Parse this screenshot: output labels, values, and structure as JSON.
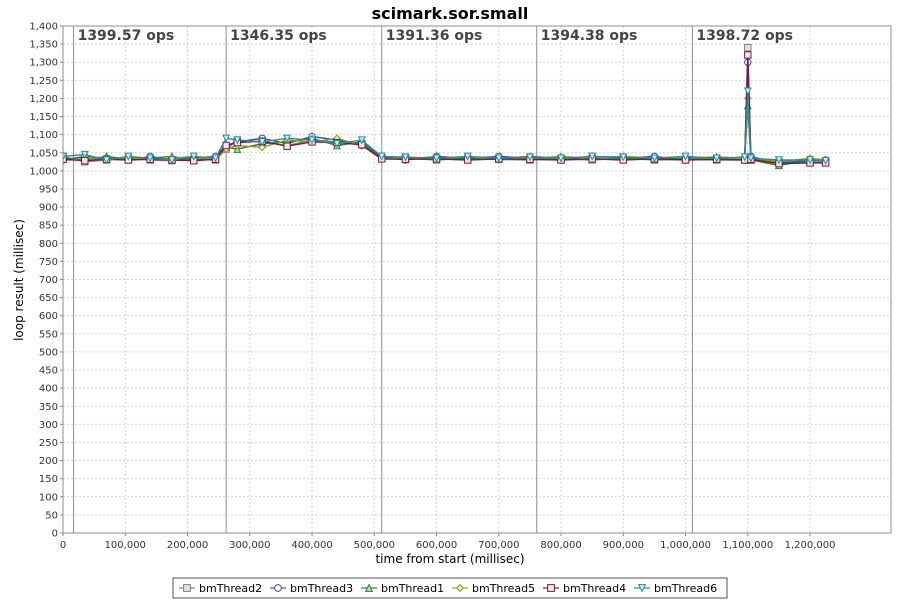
{
  "chart_data": {
    "type": "line",
    "title": "scimark.sor.small",
    "xlabel": "time from start (millisec)",
    "ylabel": "loop result (millisec)",
    "xlim": [
      0,
      1330000
    ],
    "ylim": [
      0,
      1400
    ],
    "x_ticks": [
      {
        "value": 0,
        "label": "0"
      },
      {
        "value": 100000,
        "label": "100,000"
      },
      {
        "value": 200000,
        "label": "200,000"
      },
      {
        "value": 300000,
        "label": "300,000"
      },
      {
        "value": 400000,
        "label": "400,000"
      },
      {
        "value": 500000,
        "label": "500,000"
      },
      {
        "value": 600000,
        "label": "600,000"
      },
      {
        "value": 700000,
        "label": "700,000"
      },
      {
        "value": 800000,
        "label": "800,000"
      },
      {
        "value": 900000,
        "label": "900,000"
      },
      {
        "value": 1000000,
        "label": "1,000,000"
      },
      {
        "value": 1100000,
        "label": "1,100,000"
      },
      {
        "value": 1200000,
        "label": "1,200,000"
      }
    ],
    "y_ticks": [
      {
        "value": 0,
        "label": "0"
      },
      {
        "value": 50,
        "label": "50"
      },
      {
        "value": 100,
        "label": "100"
      },
      {
        "value": 150,
        "label": "150"
      },
      {
        "value": 200,
        "label": "200"
      },
      {
        "value": 250,
        "label": "250"
      },
      {
        "value": 300,
        "label": "300"
      },
      {
        "value": 350,
        "label": "350"
      },
      {
        "value": 400,
        "label": "400"
      },
      {
        "value": 450,
        "label": "450"
      },
      {
        "value": 500,
        "label": "500"
      },
      {
        "value": 550,
        "label": "550"
      },
      {
        "value": 600,
        "label": "600"
      },
      {
        "value": 650,
        "label": "650"
      },
      {
        "value": 700,
        "label": "700"
      },
      {
        "value": 750,
        "label": "750"
      },
      {
        "value": 800,
        "label": "800"
      },
      {
        "value": 850,
        "label": "850"
      },
      {
        "value": 900,
        "label": "900"
      },
      {
        "value": 950,
        "label": "950"
      },
      {
        "value": 1000,
        "label": "1,000"
      },
      {
        "value": 1050,
        "label": "1,050"
      },
      {
        "value": 1100,
        "label": "1,100"
      },
      {
        "value": 1150,
        "label": "1,150"
      },
      {
        "value": 1200,
        "label": "1,200"
      },
      {
        "value": 1250,
        "label": "1,250"
      },
      {
        "value": 1300,
        "label": "1,300"
      },
      {
        "value": 1350,
        "label": "1,350"
      },
      {
        "value": 1400,
        "label": "1,400"
      }
    ],
    "grid": true,
    "legend_position": "bottom",
    "phase_markers": [
      {
        "x": 17000,
        "label": "1399.57 ops"
      },
      {
        "x": 262000,
        "label": "1346.35 ops"
      },
      {
        "x": 512000,
        "label": "1391.36 ops"
      },
      {
        "x": 761000,
        "label": "1394.38 ops"
      },
      {
        "x": 1011000,
        "label": "1398.72 ops"
      }
    ],
    "series": [
      {
        "name": "bmThread2",
        "color": "#7f7f7f",
        "fill": "#e8e0d8",
        "marker": "square",
        "x": [
          0,
          35000,
          70000,
          105000,
          140000,
          175000,
          210000,
          245000,
          262000,
          280000,
          320000,
          360000,
          400000,
          440000,
          480000,
          512000,
          550000,
          600000,
          650000,
          700000,
          750000,
          800000,
          850000,
          900000,
          950000,
          1000000,
          1050000,
          1095000,
          1100000,
          1105000,
          1150000,
          1200000,
          1225000
        ],
        "values": [
          1040,
          1025,
          1030,
          1035,
          1030,
          1028,
          1032,
          1030,
          1060,
          1085,
          1080,
          1070,
          1085,
          1080,
          1075,
          1035,
          1035,
          1030,
          1035,
          1032,
          1030,
          1033,
          1030,
          1035,
          1030,
          1032,
          1030,
          1030,
          1340,
          1030,
          1025,
          1025,
          1025
        ]
      },
      {
        "name": "bmThread3",
        "color": "#3b4fa0",
        "fill": "#ffffff",
        "marker": "circle",
        "x": [
          0,
          35000,
          70000,
          105000,
          140000,
          175000,
          210000,
          245000,
          262000,
          280000,
          320000,
          360000,
          400000,
          440000,
          480000,
          512000,
          550000,
          600000,
          650000,
          700000,
          750000,
          800000,
          850000,
          900000,
          950000,
          1000000,
          1050000,
          1095000,
          1100000,
          1105000,
          1150000,
          1200000,
          1225000
        ],
        "values": [
          1030,
          1040,
          1035,
          1030,
          1040,
          1030,
          1035,
          1040,
          1070,
          1080,
          1090,
          1075,
          1095,
          1085,
          1070,
          1040,
          1030,
          1040,
          1035,
          1040,
          1035,
          1030,
          1040,
          1035,
          1040,
          1030,
          1035,
          1030,
          1300,
          1040,
          1020,
          1030,
          1030
        ]
      },
      {
        "name": "bmThread1",
        "color": "#2e7d32",
        "fill": "#b8e0b0",
        "marker": "triangle-up",
        "x": [
          0,
          35000,
          70000,
          105000,
          140000,
          175000,
          210000,
          245000,
          262000,
          280000,
          320000,
          360000,
          400000,
          440000,
          480000,
          512000,
          550000,
          600000,
          650000,
          700000,
          750000,
          800000,
          850000,
          900000,
          950000,
          1000000,
          1050000,
          1095000,
          1100000,
          1105000,
          1150000,
          1200000,
          1225000
        ],
        "values": [
          1035,
          1030,
          1040,
          1032,
          1035,
          1040,
          1030,
          1035,
          1065,
          1060,
          1075,
          1080,
          1090,
          1070,
          1080,
          1038,
          1035,
          1038,
          1032,
          1035,
          1040,
          1035,
          1038,
          1035,
          1032,
          1035,
          1038,
          1035,
          1180,
          1030,
          1015,
          1030,
          1030
        ]
      },
      {
        "name": "bmThread5",
        "color": "#8a9a2a",
        "fill": "#e6edb0",
        "marker": "diamond",
        "x": [
          0,
          35000,
          70000,
          105000,
          140000,
          175000,
          210000,
          245000,
          262000,
          280000,
          320000,
          360000,
          400000,
          440000,
          480000,
          512000,
          550000,
          600000,
          650000,
          700000,
          750000,
          800000,
          850000,
          900000,
          950000,
          1000000,
          1050000,
          1095000,
          1100000,
          1105000,
          1150000,
          1200000,
          1225000
        ],
        "values": [
          1028,
          1035,
          1030,
          1038,
          1030,
          1035,
          1040,
          1030,
          1060,
          1070,
          1065,
          1085,
          1080,
          1090,
          1070,
          1032,
          1038,
          1032,
          1040,
          1030,
          1035,
          1040,
          1035,
          1040,
          1035,
          1040,
          1032,
          1038,
          1200,
          1035,
          1025,
          1035,
          1030
        ]
      },
      {
        "name": "bmThread4",
        "color": "#7a1a3a",
        "fill": "#f2e6ea",
        "marker": "square",
        "x": [
          0,
          35000,
          70000,
          105000,
          140000,
          175000,
          210000,
          245000,
          262000,
          280000,
          320000,
          360000,
          400000,
          440000,
          480000,
          512000,
          550000,
          600000,
          650000,
          700000,
          750000,
          800000,
          850000,
          900000,
          950000,
          1000000,
          1050000,
          1095000,
          1100000,
          1105000,
          1150000,
          1200000,
          1225000
        ],
        "values": [
          1032,
          1028,
          1032,
          1030,
          1032,
          1030,
          1028,
          1032,
          1070,
          1078,
          1082,
          1068,
          1080,
          1078,
          1072,
          1033,
          1032,
          1033,
          1030,
          1033,
          1032,
          1030,
          1033,
          1030,
          1033,
          1030,
          1032,
          1030,
          1320,
          1032,
          1020,
          1022,
          1022
        ]
      },
      {
        "name": "bmThread6",
        "color": "#2a8a9a",
        "fill": "#c8eef2",
        "marker": "triangle-down",
        "x": [
          0,
          35000,
          70000,
          105000,
          140000,
          175000,
          210000,
          245000,
          262000,
          280000,
          320000,
          360000,
          400000,
          440000,
          480000,
          512000,
          550000,
          600000,
          650000,
          700000,
          750000,
          800000,
          850000,
          900000,
          950000,
          1000000,
          1050000,
          1095000,
          1100000,
          1105000,
          1150000,
          1200000,
          1225000
        ],
        "values": [
          1040,
          1045,
          1030,
          1040,
          1035,
          1030,
          1040,
          1035,
          1090,
          1085,
          1080,
          1090,
          1085,
          1075,
          1085,
          1040,
          1038,
          1035,
          1040,
          1035,
          1038,
          1035,
          1040,
          1038,
          1035,
          1040,
          1035,
          1038,
          1220,
          1035,
          1030,
          1030,
          1028
        ]
      }
    ]
  }
}
